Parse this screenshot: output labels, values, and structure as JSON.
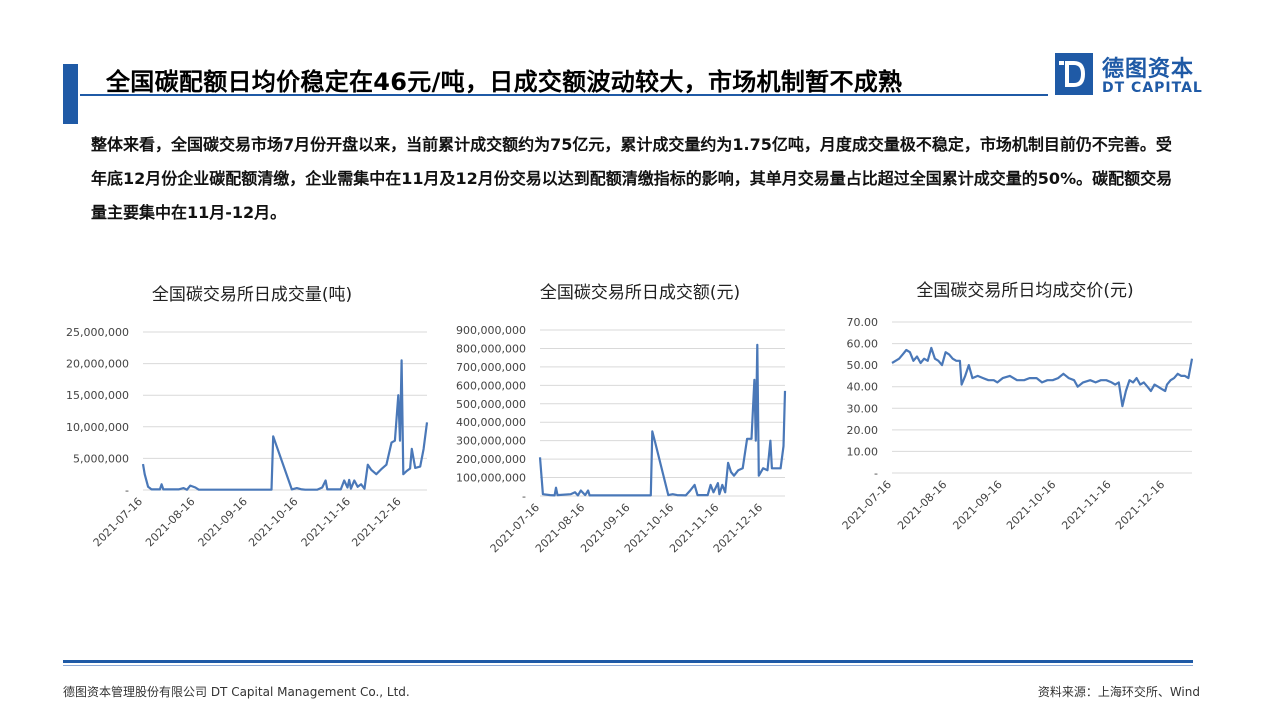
{
  "header": {
    "title": "全国碳配额日均价稳定在46元/吨，日成交额波动较大，市场机制暂不成熟"
  },
  "logo": {
    "icon": "dt-logo-icon",
    "name_cn": "德图资本",
    "name_en": "DT CAPITAL",
    "brand_color": "#1f5aa6"
  },
  "summary": "整体来看，全国碳交易市场7月份开盘以来，当前累计成交额约为75亿元，累计成交量约为1.75亿吨，月度成交量极不稳定，市场机制目前仍不完善。受年底12月份企业碳配额清缴，企业需集中在11月及12月份交易以达到配额清缴指标的影响，其单月交易量占比超过全国累计成交量的50%。碳配额交易量主要集中在11月-12月。",
  "footer": {
    "company": "德图资本管理股份有限公司  DT Capital Management  Co., Ltd.",
    "source": "资料来源：上海环交所、Wind"
  },
  "chart_data": [
    {
      "type": "line",
      "title": "全国碳交易所日成交量(吨)",
      "x_ticks": [
        "2021-07-16",
        "2021-08-16",
        "2021-09-16",
        "2021-10-16",
        "2021-11-16",
        "2021-12-16"
      ],
      "y_ticks": [
        "-",
        "5,000,000",
        "10,000,000",
        "15,000,000",
        "20,000,000",
        "25,000,000"
      ],
      "ylim": [
        0,
        25000000
      ],
      "grid": "horizontal",
      "line_color": "#4a78b8",
      "x_start": "2021-07-16",
      "x_end": "2021-12-31",
      "points": [
        [
          "2021-07-16",
          4100000
        ],
        [
          "2021-07-17",
          2500000
        ],
        [
          "2021-07-19",
          500000
        ],
        [
          "2021-07-21",
          100000
        ],
        [
          "2021-07-26",
          100000
        ],
        [
          "2021-07-27",
          900000
        ],
        [
          "2021-07-28",
          100000
        ],
        [
          "2021-08-06",
          100000
        ],
        [
          "2021-08-09",
          300000
        ],
        [
          "2021-08-11",
          50000
        ],
        [
          "2021-08-13",
          700000
        ],
        [
          "2021-08-16",
          400000
        ],
        [
          "2021-08-18",
          50000
        ],
        [
          "2021-08-25",
          50000
        ],
        [
          "2021-09-20",
          50000
        ],
        [
          "2021-09-30",
          50000
        ],
        [
          "2021-10-01",
          8500000
        ],
        [
          "2021-10-03",
          7000000
        ],
        [
          "2021-10-12",
          100000
        ],
        [
          "2021-10-15",
          300000
        ],
        [
          "2021-10-18",
          100000
        ],
        [
          "2021-10-20",
          50000
        ],
        [
          "2021-10-27",
          50000
        ],
        [
          "2021-10-30",
          400000
        ],
        [
          "2021-11-01",
          1500000
        ],
        [
          "2021-11-02",
          100000
        ],
        [
          "2021-11-10",
          100000
        ],
        [
          "2021-11-12",
          1500000
        ],
        [
          "2021-11-14",
          400000
        ],
        [
          "2021-11-15",
          1600000
        ],
        [
          "2021-11-16",
          200000
        ],
        [
          "2021-11-18",
          1500000
        ],
        [
          "2021-11-20",
          500000
        ],
        [
          "2021-11-22",
          900000
        ],
        [
          "2021-11-24",
          200000
        ],
        [
          "2021-11-26",
          4000000
        ],
        [
          "2021-11-28",
          3200000
        ],
        [
          "2021-12-01",
          2500000
        ],
        [
          "2021-12-04",
          3300000
        ],
        [
          "2021-12-07",
          4000000
        ],
        [
          "2021-12-10",
          7500000
        ],
        [
          "2021-12-12",
          7800000
        ],
        [
          "2021-12-14",
          15000000
        ],
        [
          "2021-12-15",
          7800000
        ],
        [
          "2021-12-16",
          20500000
        ],
        [
          "2021-12-17",
          2500000
        ],
        [
          "2021-12-19",
          3000000
        ],
        [
          "2021-12-21",
          3400000
        ],
        [
          "2021-12-22",
          6500000
        ],
        [
          "2021-12-24",
          3500000
        ],
        [
          "2021-12-27",
          3700000
        ],
        [
          "2021-12-29",
          6500000
        ],
        [
          "2021-12-31",
          10700000
        ]
      ]
    },
    {
      "type": "line",
      "title": "全国碳交易所日成交额(元)",
      "x_ticks": [
        "2021-07-16",
        "2021-08-16",
        "2021-09-16",
        "2021-10-16",
        "2021-11-16",
        "2021-12-16"
      ],
      "y_ticks": [
        "-",
        "100,000,000",
        "200,000,000",
        "300,000,000",
        "400,000,000",
        "500,000,000",
        "600,000,000",
        "700,000,000",
        "800,000,000",
        "900,000,000"
      ],
      "ylim": [
        0,
        900000000
      ],
      "grid": "horizontal",
      "line_color": "#4a78b8",
      "x_start": "2021-07-16",
      "x_end": "2021-12-31",
      "points": [
        [
          "2021-07-16",
          210000000
        ],
        [
          "2021-07-18",
          10000000
        ],
        [
          "2021-07-23",
          5000000
        ],
        [
          "2021-07-26",
          3000000
        ],
        [
          "2021-07-27",
          45000000
        ],
        [
          "2021-07-28",
          5000000
        ],
        [
          "2021-08-06",
          10000000
        ],
        [
          "2021-08-09",
          20000000
        ],
        [
          "2021-08-11",
          3000000
        ],
        [
          "2021-08-13",
          30000000
        ],
        [
          "2021-08-16",
          5000000
        ],
        [
          "2021-08-18",
          30000000
        ],
        [
          "2021-08-19",
          3000000
        ],
        [
          "2021-08-25",
          3000000
        ],
        [
          "2021-09-20",
          3000000
        ],
        [
          "2021-09-30",
          3000000
        ],
        [
          "2021-10-01",
          350000000
        ],
        [
          "2021-10-03",
          290000000
        ],
        [
          "2021-10-12",
          5000000
        ],
        [
          "2021-10-15",
          10000000
        ],
        [
          "2021-10-18",
          5000000
        ],
        [
          "2021-10-24",
          3000000
        ],
        [
          "2021-10-27",
          30000000
        ],
        [
          "2021-10-30",
          60000000
        ],
        [
          "2021-11-01",
          5000000
        ],
        [
          "2021-11-08",
          5000000
        ],
        [
          "2021-11-10",
          60000000
        ],
        [
          "2021-11-12",
          20000000
        ],
        [
          "2021-11-15",
          70000000
        ],
        [
          "2021-11-16",
          10000000
        ],
        [
          "2021-11-18",
          60000000
        ],
        [
          "2021-11-20",
          20000000
        ],
        [
          "2021-11-22",
          180000000
        ],
        [
          "2021-11-24",
          130000000
        ],
        [
          "2021-11-26",
          110000000
        ],
        [
          "2021-11-29",
          140000000
        ],
        [
          "2021-12-02",
          150000000
        ],
        [
          "2021-12-05",
          310000000
        ],
        [
          "2021-12-08",
          310000000
        ],
        [
          "2021-12-10",
          630000000
        ],
        [
          "2021-12-11",
          300000000
        ],
        [
          "2021-12-12",
          820000000
        ],
        [
          "2021-12-13",
          110000000
        ],
        [
          "2021-12-16",
          150000000
        ],
        [
          "2021-12-19",
          140000000
        ],
        [
          "2021-12-21",
          300000000
        ],
        [
          "2021-12-22",
          150000000
        ],
        [
          "2021-12-28",
          150000000
        ],
        [
          "2021-12-30",
          270000000
        ],
        [
          "2021-12-31",
          570000000
        ]
      ]
    },
    {
      "type": "line",
      "title": "全国碳交易所日均成交价(元)",
      "x_ticks": [
        "2021-07-16",
        "2021-08-16",
        "2021-09-16",
        "2021-10-16",
        "2021-11-16",
        "2021-12-16"
      ],
      "y_ticks": [
        "-",
        "10.00",
        "20.00",
        "30.00",
        "40.00",
        "50.00",
        "60.00",
        "70.00"
      ],
      "ylim": [
        0,
        70
      ],
      "grid": "horizontal",
      "line_color": "#4a78b8",
      "x_start": "2021-07-16",
      "x_end": "2021-12-31",
      "points": [
        [
          "2021-07-16",
          51
        ],
        [
          "2021-07-18",
          52
        ],
        [
          "2021-07-20",
          53
        ],
        [
          "2021-07-22",
          55
        ],
        [
          "2021-07-24",
          57
        ],
        [
          "2021-07-26",
          56
        ],
        [
          "2021-07-28",
          52
        ],
        [
          "2021-07-30",
          54
        ],
        [
          "2021-08-01",
          51
        ],
        [
          "2021-08-03",
          53
        ],
        [
          "2021-08-05",
          52
        ],
        [
          "2021-08-07",
          58
        ],
        [
          "2021-08-09",
          53
        ],
        [
          "2021-08-11",
          52
        ],
        [
          "2021-08-13",
          50
        ],
        [
          "2021-08-15",
          56
        ],
        [
          "2021-08-17",
          55
        ],
        [
          "2021-08-19",
          53
        ],
        [
          "2021-08-21",
          52
        ],
        [
          "2021-08-23",
          52
        ],
        [
          "2021-08-24",
          41
        ],
        [
          "2021-08-26",
          45
        ],
        [
          "2021-08-28",
          50
        ],
        [
          "2021-08-30",
          44
        ],
        [
          "2021-09-02",
          45
        ],
        [
          "2021-09-05",
          44
        ],
        [
          "2021-09-08",
          43
        ],
        [
          "2021-09-11",
          43
        ],
        [
          "2021-09-13",
          42
        ],
        [
          "2021-09-16",
          44
        ],
        [
          "2021-09-20",
          45
        ],
        [
          "2021-09-24",
          43
        ],
        [
          "2021-09-28",
          43
        ],
        [
          "2021-10-01",
          44
        ],
        [
          "2021-10-05",
          44
        ],
        [
          "2021-10-08",
          42
        ],
        [
          "2021-10-11",
          43
        ],
        [
          "2021-10-14",
          43
        ],
        [
          "2021-10-17",
          44
        ],
        [
          "2021-10-20",
          46
        ],
        [
          "2021-10-23",
          44
        ],
        [
          "2021-10-26",
          43
        ],
        [
          "2021-10-28",
          40
        ],
        [
          "2021-10-31",
          42
        ],
        [
          "2021-11-04",
          43
        ],
        [
          "2021-11-07",
          42
        ],
        [
          "2021-11-10",
          43
        ],
        [
          "2021-11-13",
          43
        ],
        [
          "2021-11-16",
          42
        ],
        [
          "2021-11-18",
          41
        ],
        [
          "2021-11-20",
          42
        ],
        [
          "2021-11-22",
          31
        ],
        [
          "2021-11-24",
          38
        ],
        [
          "2021-11-26",
          43
        ],
        [
          "2021-11-28",
          42
        ],
        [
          "2021-11-30",
          44
        ],
        [
          "2021-12-02",
          41
        ],
        [
          "2021-12-04",
          42
        ],
        [
          "2021-12-06",
          40
        ],
        [
          "2021-12-08",
          38
        ],
        [
          "2021-12-10",
          41
        ],
        [
          "2021-12-12",
          40
        ],
        [
          "2021-12-14",
          39
        ],
        [
          "2021-12-16",
          38
        ],
        [
          "2021-12-17",
          41
        ],
        [
          "2021-12-19",
          43
        ],
        [
          "2021-12-21",
          44
        ],
        [
          "2021-12-23",
          46
        ],
        [
          "2021-12-25",
          45
        ],
        [
          "2021-12-27",
          45
        ],
        [
          "2021-12-29",
          44
        ],
        [
          "2021-12-31",
          53
        ]
      ]
    }
  ]
}
